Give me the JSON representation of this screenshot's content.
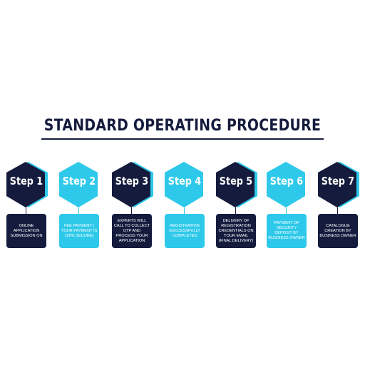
{
  "title": "STANDARD OPERATING PROCEDURE",
  "colors": {
    "dark": "#141b3d",
    "light": "#2ec9ea",
    "accent_shadow": "#2ec9ea"
  },
  "steps": [
    {
      "label": "Step 1",
      "text": "ONLINE APPLICATION SUBMISSION ON",
      "theme": "dark"
    },
    {
      "label": "Step 2",
      "text": "FEE PAYMENT ( YOUR PAYMENT IS 100% SECURE)",
      "theme": "light"
    },
    {
      "label": "Step 3",
      "text": "EXPERTS WILL CALL TO COLLECT OTP AND PROCESS YOUR APPLICATION",
      "theme": "dark"
    },
    {
      "label": "Step 4",
      "text": "REGISTRATION SUCCESSFULLY COMPLETED",
      "theme": "light"
    },
    {
      "label": "Step 5",
      "text": "DELIVERY OF REGISTRATION CREDENTIALS ON YOUR EMAIL (FINAL DELIVERY)",
      "theme": "dark"
    },
    {
      "label": "Step 6",
      "text": "PAYMENT OF SECURITY DEPOSIT BY BUSINESS OWNER",
      "theme": "light"
    },
    {
      "label": "Step 7",
      "text": "CATALOGUE CREATION BY BUSINESS OWNER",
      "theme": "dark"
    }
  ]
}
